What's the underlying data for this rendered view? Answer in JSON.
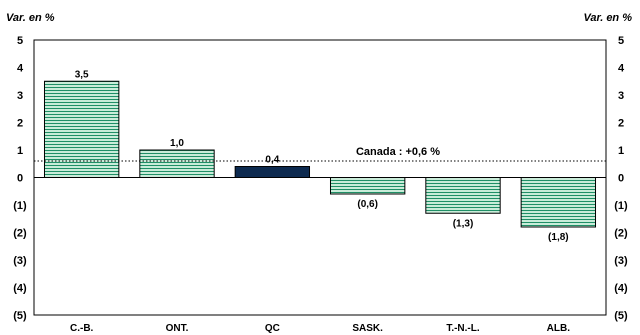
{
  "chart_data": {
    "type": "bar",
    "ylabel_left": "Var. en %",
    "ylabel_right": "Var. en %",
    "ylim": [
      -5,
      5
    ],
    "yticks": [
      5,
      4,
      3,
      2,
      1,
      0,
      -1,
      -2,
      -3,
      -4,
      -5
    ],
    "ytick_labels": [
      "5",
      "4",
      "3",
      "2",
      "1",
      "0",
      "(1)",
      "(2)",
      "(3)",
      "(4)",
      "(5)"
    ],
    "categories": [
      "C.-B.",
      "ONT.",
      "QC",
      "SASK.",
      "T.-N.-L.",
      "ALB."
    ],
    "values": [
      3.5,
      1.0,
      0.4,
      -0.6,
      -1.3,
      -1.8
    ],
    "data_labels": [
      "3,5",
      "1,0",
      "0,4",
      "(0,6)",
      "(1,3)",
      "(1,8)"
    ],
    "highlight_category": "QC",
    "colors": {
      "bar_fill": "#c9ecd9",
      "bar_stripe": "#1f8f66",
      "highlight": "#0d2a4f",
      "reference_line": "#000000"
    },
    "reference_line": {
      "value": 0.6,
      "label": "Canada : +0,6 %",
      "style": "dotted"
    },
    "grid": false
  }
}
